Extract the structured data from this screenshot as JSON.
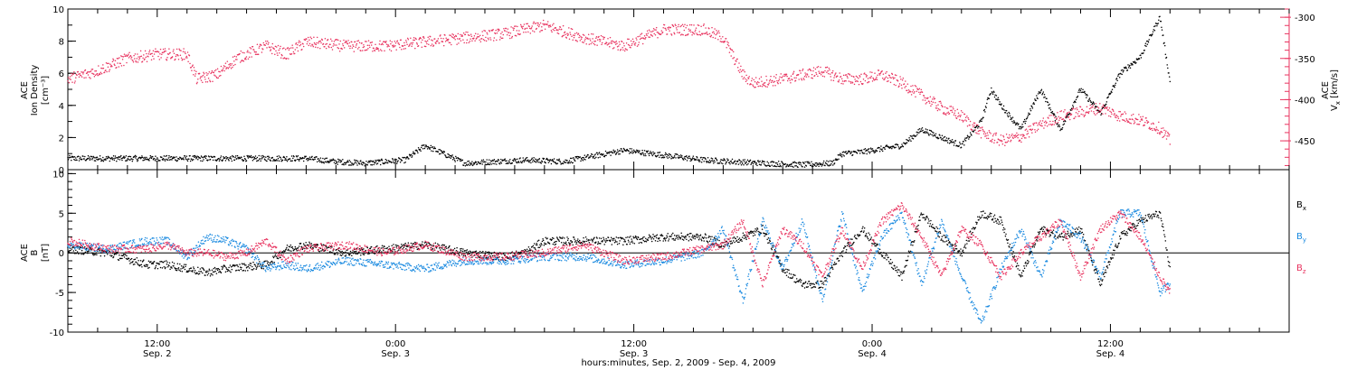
{
  "chart_data": [
    {
      "type": "scatter",
      "panel": "top",
      "ylabel_lines": [
        "ACE",
        "Ion Density",
        "[cm⁻³]"
      ],
      "y2label": "ACE Vx [km/s]",
      "y2label_parts": {
        "prefix": "V",
        "sub": "x",
        "unit": " [km/s]",
        "super": "ACE"
      },
      "ylim": [
        0,
        10
      ],
      "yticks": [
        0,
        2,
        4,
        6,
        8,
        10
      ],
      "y2lim": [
        -485,
        -290
      ],
      "y2ticks": [
        -300,
        -350,
        -400,
        -450
      ],
      "series": [
        {
          "name": "Ion Density",
          "axis": "left",
          "color": "#000000",
          "x": [
            0,
            6,
            12,
            18,
            24,
            27,
            30,
            34,
            36,
            40,
            46,
            50,
            56,
            60,
            64,
            70,
            74,
            77,
            78,
            80,
            82,
            84,
            86,
            88,
            90,
            92,
            93,
            94,
            96,
            98,
            100,
            102,
            104,
            106,
            108,
            110,
            111
          ],
          "values": [
            0.7,
            0.7,
            0.7,
            0.7,
            0.7,
            0.5,
            0.4,
            0.6,
            1.5,
            0.4,
            0.6,
            0.5,
            1.2,
            0.9,
            0.6,
            0.4,
            0.3,
            0.4,
            1.0,
            1.1,
            1.3,
            1.5,
            2.5,
            2.0,
            1.5,
            3.0,
            5.0,
            4.0,
            2.5,
            5.0,
            2.5,
            5.0,
            3.5,
            6.0,
            7.0,
            9.5,
            5.5
          ]
        },
        {
          "name": "Vx",
          "axis": "right",
          "color": "#e8335f",
          "x": [
            0,
            3,
            6,
            9,
            12,
            13,
            15,
            17,
            18,
            20,
            22,
            24,
            28,
            32,
            36,
            40,
            44,
            48,
            52,
            56,
            60,
            64,
            66,
            68,
            69,
            72,
            74,
            76,
            78,
            80,
            82,
            84,
            86,
            88,
            90,
            92,
            94,
            96,
            98,
            100,
            102,
            104,
            106,
            108,
            110,
            111
          ],
          "values": [
            -375,
            -365,
            -350,
            -345,
            -345,
            -375,
            -370,
            -350,
            -345,
            -335,
            -345,
            -330,
            -335,
            -335,
            -330,
            -325,
            -320,
            -310,
            -325,
            -335,
            -315,
            -315,
            -325,
            -370,
            -380,
            -375,
            -370,
            -365,
            -375,
            -375,
            -370,
            -380,
            -395,
            -410,
            -420,
            -440,
            -450,
            -445,
            -430,
            -420,
            -415,
            -410,
            -420,
            -425,
            -435,
            -450
          ]
        }
      ]
    },
    {
      "type": "scatter",
      "panel": "bottom",
      "ylabel_lines": [
        "ACE",
        "B",
        "[nT]"
      ],
      "ylim": [
        -10,
        10.5
      ],
      "yticks": [
        -10,
        -5,
        0,
        5,
        10
      ],
      "zero_line": true,
      "legend_position": "right",
      "xlabel": "hours:minutes, Sep. 2, 2009 - Sep. 4, 2009",
      "xlim": [
        0,
        123
      ],
      "xticks": [
        {
          "x": 9,
          "time": "12:00",
          "date": "Sep. 2"
        },
        {
          "x": 33,
          "time": "0:00",
          "date": "Sep. 3"
        },
        {
          "x": 57,
          "time": "12:00",
          "date": "Sep. 3"
        },
        {
          "x": 81,
          "time": "0:00",
          "date": "Sep. 4"
        },
        {
          "x": 105,
          "time": "12:00",
          "date": "Sep. 4"
        }
      ],
      "series": [
        {
          "name": "Bx",
          "legend_prefix": "B",
          "legend_sub": "x",
          "color": "#000000",
          "x": [
            0,
            4,
            8,
            10,
            14,
            16,
            20,
            22,
            24,
            28,
            32,
            36,
            40,
            44,
            46,
            48,
            52,
            56,
            60,
            64,
            66,
            68,
            70,
            72,
            74,
            76,
            78,
            80,
            82,
            84,
            86,
            88,
            90,
            92,
            94,
            96,
            98,
            100,
            102,
            104,
            106,
            108,
            110,
            111
          ],
          "values": [
            0.5,
            0,
            -1.5,
            -1.5,
            -2.5,
            -2,
            -1.5,
            0.5,
            1,
            0,
            0.5,
            1,
            0,
            -0.5,
            0,
            1.5,
            1.5,
            1.5,
            2,
            2,
            1,
            2,
            3,
            -2,
            -4,
            -4,
            0,
            3,
            0,
            -3,
            5,
            2,
            0,
            5,
            4,
            -3,
            3,
            2,
            3,
            -4,
            2,
            4,
            5,
            -2
          ]
        },
        {
          "name": "By",
          "legend_prefix": "B",
          "legend_sub": "y",
          "color": "#1a8ae0",
          "x": [
            0,
            4,
            8,
            10,
            12,
            14,
            16,
            18,
            20,
            22,
            24,
            28,
            32,
            36,
            40,
            44,
            48,
            52,
            56,
            60,
            64,
            66,
            68,
            70,
            72,
            74,
            76,
            78,
            80,
            82,
            84,
            86,
            88,
            90,
            92,
            94,
            96,
            98,
            100,
            102,
            104,
            106,
            108,
            110,
            111
          ],
          "values": [
            1,
            0.5,
            1.5,
            1.5,
            -0.5,
            2,
            1.5,
            0.5,
            -2,
            -1.5,
            -2,
            -1,
            -1.5,
            -2,
            -1,
            -1,
            -0.5,
            -0.5,
            -1.5,
            -1,
            0,
            3,
            -6,
            4,
            -2,
            4,
            -6,
            5,
            -5,
            2,
            5,
            -4,
            4,
            -3,
            -9,
            -2,
            3,
            -3,
            4,
            2,
            -3,
            5,
            5,
            -5,
            -4
          ]
        },
        {
          "name": "Bz",
          "legend_prefix": "B",
          "legend_sub": "z",
          "color": "#e8335f",
          "x": [
            0,
            4,
            8,
            10,
            12,
            14,
            16,
            18,
            20,
            22,
            24,
            28,
            32,
            36,
            40,
            44,
            48,
            52,
            56,
            60,
            64,
            66,
            68,
            70,
            72,
            74,
            76,
            78,
            80,
            82,
            84,
            86,
            88,
            90,
            92,
            94,
            96,
            98,
            100,
            102,
            104,
            106,
            108,
            110,
            111
          ],
          "values": [
            1.5,
            0.5,
            0.5,
            1,
            0,
            0,
            -0.5,
            0,
            1.5,
            -1,
            0.5,
            1,
            0,
            1,
            -0.5,
            -0.5,
            0,
            1,
            -1,
            -0.5,
            0.5,
            1,
            4,
            -4,
            3,
            1,
            -3,
            3,
            -2,
            4,
            6,
            2,
            -3,
            3,
            1,
            -3,
            0,
            2,
            4,
            -3,
            3,
            5,
            2,
            -3,
            -5
          ]
        }
      ]
    }
  ]
}
